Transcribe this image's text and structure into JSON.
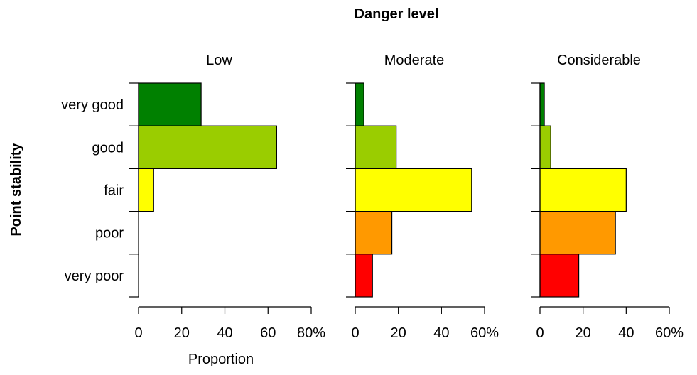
{
  "chart_data": {
    "type": "bar",
    "orientation": "horizontal",
    "title": "Danger level",
    "ylabel": "Point stability",
    "xlabel": "Proportion",
    "categories": [
      "very good",
      "good",
      "fair",
      "poor",
      "very poor"
    ],
    "colors": [
      "#008000",
      "#9ACD00",
      "#FFFF00",
      "#FF9900",
      "#FF0000"
    ],
    "panels": [
      {
        "name": "Low",
        "values": [
          29,
          64,
          7,
          0,
          0
        ],
        "xlim": [
          0,
          80
        ],
        "ticks": [
          "0",
          "20",
          "40",
          "60",
          "80%"
        ]
      },
      {
        "name": "Moderate",
        "values": [
          4,
          19,
          54,
          17,
          8
        ],
        "xlim": [
          0,
          60
        ],
        "ticks": [
          "0",
          "20",
          "40",
          "60%"
        ]
      },
      {
        "name": "Considerable",
        "values": [
          2,
          5,
          40,
          35,
          18
        ],
        "xlim": [
          0,
          60
        ],
        "ticks": [
          "0",
          "20",
          "40",
          "60%"
        ]
      }
    ],
    "grid": false,
    "legend": "none"
  }
}
